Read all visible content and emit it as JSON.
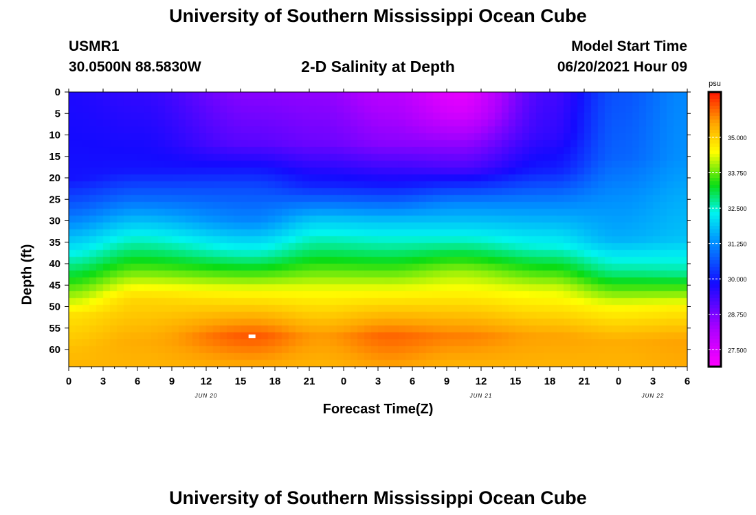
{
  "header": {
    "title": "University of Southern Mississippi Ocean Cube",
    "footer_title": "University of Southern Mississippi Ocean Cube",
    "station_id": "USMR1",
    "station_coords": "30.0500N  88.5830W",
    "model_start_label": "Model Start Time",
    "model_start_value": "06/20/2021 Hour 09"
  },
  "chart_data": {
    "type": "heatmap",
    "title": "2-D Salinity at Depth",
    "xlabel": "Forecast Time(Z)",
    "ylabel": "Depth (ft)",
    "x_ticks": [
      "0",
      "3",
      "6",
      "9",
      "12",
      "15",
      "18",
      "21",
      "0",
      "3",
      "6",
      "9",
      "12",
      "15",
      "18",
      "21",
      "0",
      "3",
      "6"
    ],
    "x_range_hours": [
      0,
      54
    ],
    "date_labels": [
      {
        "label": "JUN 20",
        "hour": 12
      },
      {
        "label": "JUN 21",
        "hour": 36
      },
      {
        "label": "JUN 22",
        "hour": 51
      }
    ],
    "y_ticks": [
      "0",
      "5",
      "10",
      "15",
      "20",
      "25",
      "30",
      "35",
      "40",
      "45",
      "50",
      "55",
      "60"
    ],
    "y_range_ft": [
      0,
      64
    ],
    "colorbar": {
      "unit": "psu",
      "min": 26.9,
      "max": 36.6,
      "ticks": [
        "35.000",
        "33.750",
        "32.500",
        "31.250",
        "30.000",
        "28.750",
        "27.500"
      ],
      "tick_values": [
        35.0,
        33.75,
        32.5,
        31.25,
        30.0,
        28.75,
        27.5
      ]
    },
    "salinity_profiles": [
      {
        "hour": 0,
        "depth_ft": [
          0,
          20,
          28,
          36,
          44,
          52,
          60,
          64
        ],
        "psu": [
          29.7,
          29.9,
          30.9,
          32.1,
          33.4,
          34.8,
          35.2,
          35.3
        ]
      },
      {
        "hour": 6,
        "depth_ft": [
          0,
          18,
          25,
          32,
          40,
          48,
          58,
          64
        ],
        "psu": [
          29.5,
          29.9,
          30.9,
          32.1,
          33.4,
          34.9,
          35.4,
          35.3
        ]
      },
      {
        "hour": 16,
        "depth_ft": [
          0,
          12,
          22,
          30,
          38,
          46,
          57,
          64
        ],
        "psu": [
          28.6,
          29.1,
          30.5,
          31.2,
          32.6,
          34.4,
          36.1,
          35.4
        ]
      },
      {
        "hour": 22,
        "depth_ft": [
          0,
          12,
          22,
          30,
          38,
          46,
          57,
          64
        ],
        "psu": [
          28.5,
          28.9,
          30.1,
          31.9,
          33.1,
          34.4,
          35.6,
          35.3
        ]
      },
      {
        "hour": 28,
        "depth_ft": [
          0,
          12,
          22,
          30,
          38,
          46,
          57,
          64
        ],
        "psu": [
          28.0,
          28.6,
          30.0,
          31.8,
          33.0,
          34.4,
          36.0,
          35.5
        ]
      },
      {
        "hour": 34,
        "depth_ft": [
          0,
          5,
          18,
          26,
          34,
          42,
          57,
          64
        ],
        "psu": [
          27.3,
          27.6,
          29.3,
          31.2,
          32.4,
          34.0,
          35.8,
          35.3
        ]
      },
      {
        "hour": 42,
        "depth_ft": [
          0,
          10,
          18,
          26,
          36,
          46,
          57,
          64
        ],
        "psu": [
          29.3,
          29.5,
          30.0,
          31.2,
          32.4,
          34.3,
          35.5,
          35.3
        ]
      },
      {
        "hour": 48,
        "depth_ft": [
          0,
          15,
          25,
          34,
          42,
          50,
          58,
          64
        ],
        "psu": [
          30.6,
          30.8,
          31.3,
          31.6,
          32.8,
          34.5,
          35.4,
          35.3
        ]
      },
      {
        "hour": 54,
        "depth_ft": [
          0,
          15,
          25,
          34,
          42,
          50,
          58,
          64
        ],
        "psu": [
          31.2,
          31.3,
          31.6,
          31.8,
          32.7,
          34.6,
          35.5,
          35.4
        ]
      }
    ],
    "marker": {
      "hour": 16,
      "depth_ft": 57
    }
  }
}
